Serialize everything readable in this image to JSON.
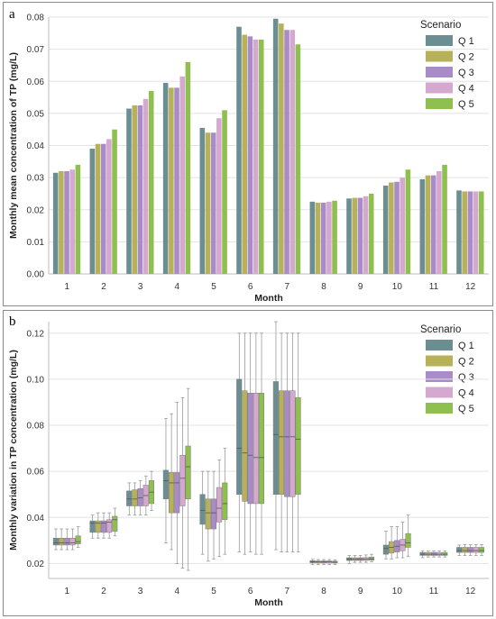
{
  "chart_data": [
    {
      "panel_label": "a",
      "type": "bar",
      "xlabel": "Month",
      "ylabel": "Monthly mean concentration of TP (mg/L)",
      "ylim": [
        0,
        0.08
      ],
      "yticks": [
        "0.00",
        "0.01",
        "0.02",
        "0.03",
        "0.04",
        "0.05",
        "0.06",
        "0.07",
        "0.08"
      ],
      "categories": [
        "1",
        "2",
        "3",
        "4",
        "5",
        "6",
        "7",
        "8",
        "9",
        "10",
        "11",
        "12"
      ],
      "legend_title": "Scenario",
      "legend_position": "top-right",
      "grid": "horizontal",
      "series": [
        {
          "name": "Q 1",
          "color": "#6b8e93",
          "values": [
            0.0315,
            0.039,
            0.0515,
            0.0595,
            0.0455,
            0.077,
            0.0795,
            0.0225,
            0.0235,
            0.0275,
            0.0295,
            0.026
          ]
        },
        {
          "name": "Q 2",
          "color": "#b7b15a",
          "values": [
            0.032,
            0.0405,
            0.0525,
            0.058,
            0.044,
            0.0745,
            0.078,
            0.0222,
            0.0237,
            0.0285,
            0.0307,
            0.0257
          ]
        },
        {
          "name": "Q 3",
          "color": "#a98bc7",
          "values": [
            0.032,
            0.0405,
            0.0525,
            0.058,
            0.044,
            0.074,
            0.076,
            0.0222,
            0.0237,
            0.0287,
            0.0307,
            0.0257
          ]
        },
        {
          "name": "Q 4",
          "color": "#d5a9cf",
          "values": [
            0.0325,
            0.042,
            0.0545,
            0.0615,
            0.0485,
            0.073,
            0.076,
            0.0225,
            0.0242,
            0.03,
            0.032,
            0.0257
          ]
        },
        {
          "name": "Q 5",
          "color": "#8fbf4f",
          "values": [
            0.034,
            0.045,
            0.057,
            0.066,
            0.051,
            0.073,
            0.0715,
            0.0228,
            0.025,
            0.0325,
            0.034,
            0.0257
          ]
        }
      ]
    },
    {
      "panel_label": "b",
      "type": "box",
      "xlabel": "Month",
      "ylabel": "Monthly variation in TP concentration (mg/L)",
      "ylim": [
        0.0135,
        0.125
      ],
      "yticks": [
        "0.02",
        "0.04",
        "0.06",
        "0.08",
        "0.10",
        "0.12"
      ],
      "categories": [
        "1",
        "2",
        "3",
        "4",
        "5",
        "6",
        "7",
        "8",
        "9",
        "10",
        "11",
        "12"
      ],
      "legend_title": "Scenario",
      "legend_position": "top-right",
      "grid": "horizontal",
      "series": [
        {
          "name": "Q 1",
          "color": "#6b8e93",
          "stats": [
            [
              0.026,
              0.028,
              0.029,
              0.031,
              0.035
            ],
            [
              0.031,
              0.0335,
              0.0375,
              0.0385,
              0.041
            ],
            [
              0.041,
              0.045,
              0.048,
              0.0515,
              0.055
            ],
            [
              0.029,
              0.048,
              0.056,
              0.0605,
              0.083
            ],
            [
              0.024,
              0.037,
              0.043,
              0.05,
              0.06
            ],
            [
              0.025,
              0.05,
              0.07,
              0.1,
              0.12
            ],
            [
              0.026,
              0.05,
              0.076,
              0.099,
              0.125
            ],
            [
              0.0195,
              0.0203,
              0.0208,
              0.0212,
              0.0218
            ],
            [
              0.02,
              0.0213,
              0.0218,
              0.0225,
              0.0235
            ],
            [
              0.022,
              0.024,
              0.0265,
              0.028,
              0.034
            ],
            [
              0.0225,
              0.0235,
              0.024,
              0.0248,
              0.0255
            ],
            [
              0.0235,
              0.0248,
              0.0256,
              0.027,
              0.028
            ]
          ]
        },
        {
          "name": "Q 2",
          "color": "#b7b15a",
          "stats": [
            [
              0.026,
              0.028,
              0.029,
              0.031,
              0.035
            ],
            [
              0.031,
              0.0335,
              0.0375,
              0.0385,
              0.042
            ],
            [
              0.041,
              0.045,
              0.048,
              0.052,
              0.055
            ],
            [
              0.026,
              0.042,
              0.055,
              0.0595,
              0.085
            ],
            [
              0.021,
              0.035,
              0.042,
              0.048,
              0.06
            ],
            [
              0.024,
              0.047,
              0.068,
              0.095,
              0.12
            ],
            [
              0.025,
              0.05,
              0.075,
              0.095,
              0.12
            ],
            [
              0.0195,
              0.0202,
              0.0207,
              0.0211,
              0.0217
            ],
            [
              0.0205,
              0.0213,
              0.0218,
              0.0225,
              0.0235
            ],
            [
              0.022,
              0.0245,
              0.027,
              0.0295,
              0.036
            ],
            [
              0.0228,
              0.0235,
              0.024,
              0.0248,
              0.0255
            ],
            [
              0.0235,
              0.0248,
              0.0256,
              0.027,
              0.0282
            ]
          ]
        },
        {
          "name": "Q 3",
          "color": "#a98bc7",
          "stats": [
            [
              0.026,
              0.028,
              0.029,
              0.031,
              0.035
            ],
            [
              0.031,
              0.0335,
              0.0375,
              0.0385,
              0.042
            ],
            [
              0.041,
              0.045,
              0.0485,
              0.0525,
              0.056
            ],
            [
              0.02,
              0.042,
              0.055,
              0.0595,
              0.09
            ],
            [
              0.022,
              0.035,
              0.042,
              0.048,
              0.06
            ],
            [
              0.025,
              0.046,
              0.067,
              0.094,
              0.12
            ],
            [
              0.025,
              0.049,
              0.075,
              0.095,
              0.12
            ],
            [
              0.0195,
              0.0202,
              0.0207,
              0.0211,
              0.0217
            ],
            [
              0.0205,
              0.0213,
              0.0218,
              0.0225,
              0.0235
            ],
            [
              0.0225,
              0.025,
              0.0275,
              0.03,
              0.036
            ],
            [
              0.0228,
              0.0235,
              0.024,
              0.0248,
              0.0255
            ],
            [
              0.0235,
              0.0248,
              0.0256,
              0.027,
              0.0282
            ]
          ]
        },
        {
          "name": "Q 4",
          "color": "#d5a9cf",
          "stats": [
            [
              0.026,
              0.028,
              0.029,
              0.031,
              0.035
            ],
            [
              0.031,
              0.0335,
              0.038,
              0.039,
              0.042
            ],
            [
              0.041,
              0.045,
              0.0495,
              0.054,
              0.058
            ],
            [
              0.018,
              0.045,
              0.057,
              0.067,
              0.092
            ],
            [
              0.023,
              0.038,
              0.044,
              0.053,
              0.065
            ],
            [
              0.024,
              0.046,
              0.066,
              0.094,
              0.12
            ],
            [
              0.025,
              0.049,
              0.075,
              0.095,
              0.12
            ],
            [
              0.0195,
              0.0202,
              0.0207,
              0.0211,
              0.0217
            ],
            [
              0.0205,
              0.0213,
              0.0219,
              0.0226,
              0.0237
            ],
            [
              0.0225,
              0.0255,
              0.028,
              0.0305,
              0.038
            ],
            [
              0.0228,
              0.0235,
              0.024,
              0.0248,
              0.0255
            ],
            [
              0.0235,
              0.0248,
              0.0256,
              0.027,
              0.0282
            ]
          ]
        },
        {
          "name": "Q 5",
          "color": "#8fbf4f",
          "stats": [
            [
              0.027,
              0.0285,
              0.0295,
              0.032,
              0.036
            ],
            [
              0.032,
              0.034,
              0.039,
              0.0405,
              0.044
            ],
            [
              0.043,
              0.046,
              0.051,
              0.056,
              0.06
            ],
            [
              0.017,
              0.048,
              0.062,
              0.071,
              0.096
            ],
            [
              0.024,
              0.039,
              0.046,
              0.055,
              0.07
            ],
            [
              0.024,
              0.046,
              0.066,
              0.094,
              0.12
            ],
            [
              0.025,
              0.05,
              0.074,
              0.092,
              0.12
            ],
            [
              0.0195,
              0.0202,
              0.0206,
              0.021,
              0.0216
            ],
            [
              0.0207,
              0.0214,
              0.022,
              0.0228,
              0.024
            ],
            [
              0.023,
              0.027,
              0.029,
              0.033,
              0.041
            ],
            [
              0.0228,
              0.0235,
              0.024,
              0.0248,
              0.0255
            ],
            [
              0.0235,
              0.0248,
              0.0256,
              0.027,
              0.0282
            ]
          ]
        }
      ]
    }
  ]
}
